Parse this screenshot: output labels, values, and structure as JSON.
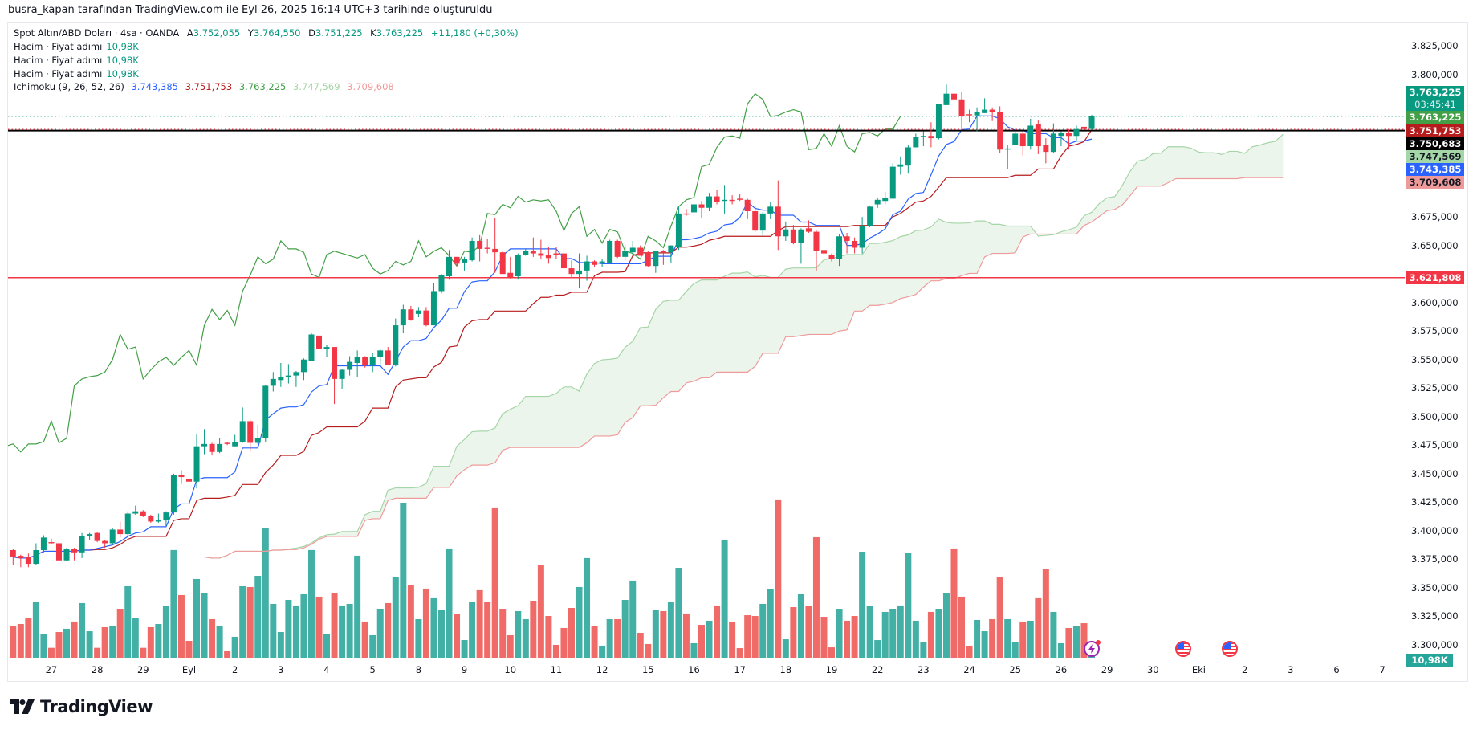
{
  "credit": "busra_kapan tarafından TradingView.com ile Eyl 26, 2025 16:14 UTC+3 tarihinde oluşturuldu",
  "legend": {
    "symbol": "Spot Altın/ABD Doları · 4sa · OANDA",
    "ohlc": [
      {
        "key": "A",
        "value": "3.752,055"
      },
      {
        "key": "Y",
        "value": "3.764,550"
      },
      {
        "key": "D",
        "value": "3.751,225"
      },
      {
        "key": "K",
        "value": "3.763,225"
      }
    ],
    "change": "+11,180 (+0,30%)",
    "volume_lines": [
      {
        "label": "Hacim · Fiyat adımı",
        "value": "10,98K"
      },
      {
        "label": "Hacim · Fiyat adımı",
        "value": "10,98K"
      },
      {
        "label": "Hacim · Fiyat adımı",
        "value": "10,98K"
      }
    ],
    "ichimoku": {
      "label": "Ichimoku (9, 26, 52, 26)",
      "values": [
        {
          "value": "3.743,385",
          "color": "#2962ff"
        },
        {
          "value": "3.751,753",
          "color": "#b71c1c"
        },
        {
          "value": "3.763,225",
          "color": "#43a047"
        },
        {
          "value": "3.747,569",
          "color": "#a5d6a7"
        },
        {
          "value": "3.709,608",
          "color": "#ef9a9a"
        }
      ]
    }
  },
  "price_axis": {
    "ticks": [
      {
        "value": 3.825,
        "label": "3.825,000"
      },
      {
        "value": 3.8,
        "label": "3.800,000"
      },
      {
        "value": 3.675,
        "label": "3.675,000"
      },
      {
        "value": 3.65,
        "label": "3.650,000"
      },
      {
        "value": 3.6,
        "label": "3.600,000"
      },
      {
        "value": 3.575,
        "label": "3.575,000"
      },
      {
        "value": 3.55,
        "label": "3.550,000"
      },
      {
        "value": 3.525,
        "label": "3.525,000"
      },
      {
        "value": 3.5,
        "label": "3.500,000"
      },
      {
        "value": 3.475,
        "label": "3.475,000"
      },
      {
        "value": 3.45,
        "label": "3.450,000"
      },
      {
        "value": 3.425,
        "label": "3.425,000"
      },
      {
        "value": 3.4,
        "label": "3.400,000"
      },
      {
        "value": 3.375,
        "label": "3.375,000"
      },
      {
        "value": 3.35,
        "label": "3.350,000"
      },
      {
        "value": 3.325,
        "label": "3.325,000"
      },
      {
        "value": 3.3,
        "label": "3.300,000"
      }
    ],
    "tags": [
      {
        "label": "3.763,225",
        "sub": "03:45:41",
        "bg": "#089981",
        "fg": "#ffffff"
      },
      {
        "label": "3.763,225",
        "bg": "#43a047",
        "fg": "#ffffff"
      },
      {
        "label": "3.751,753",
        "bg": "#b71c1c",
        "fg": "#ffffff"
      },
      {
        "label": "3.750,683",
        "bg": "#000000",
        "fg": "#ffffff"
      },
      {
        "label": "3.747,569",
        "bg": "#a5d6a7",
        "fg": "#131722"
      },
      {
        "label": "3.743,385",
        "bg": "#2962ff",
        "fg": "#ffffff"
      },
      {
        "label": "3.709,608",
        "bg": "#ef9a9a",
        "fg": "#131722"
      }
    ],
    "level_tag": {
      "label": "3.621,808",
      "bg": "#f23645",
      "fg": "#ffffff"
    },
    "volume_tag": {
      "label": "10,98K",
      "bg": "#26a69a",
      "fg": "#ffffff"
    }
  },
  "time_axis": [
    {
      "label": "27",
      "bar": 5
    },
    {
      "label": "28",
      "bar": 11
    },
    {
      "label": "29",
      "bar": 17
    },
    {
      "label": "Eyl",
      "bar": 23
    },
    {
      "label": "2",
      "bar": 29
    },
    {
      "label": "3",
      "bar": 35
    },
    {
      "label": "4",
      "bar": 41
    },
    {
      "label": "5",
      "bar": 47
    },
    {
      "label": "8",
      "bar": 53
    },
    {
      "label": "9",
      "bar": 59
    },
    {
      "label": "10",
      "bar": 65
    },
    {
      "label": "11",
      "bar": 71
    },
    {
      "label": "12",
      "bar": 77
    },
    {
      "label": "15",
      "bar": 83
    },
    {
      "label": "16",
      "bar": 89
    },
    {
      "label": "17",
      "bar": 95
    },
    {
      "label": "18",
      "bar": 101
    },
    {
      "label": "19",
      "bar": 107
    },
    {
      "label": "22",
      "bar": 113
    },
    {
      "label": "23",
      "bar": 119
    },
    {
      "label": "24",
      "bar": 125
    },
    {
      "label": "25",
      "bar": 131
    },
    {
      "label": "26",
      "bar": 137
    },
    {
      "label": "29",
      "bar": 143
    },
    {
      "label": "30",
      "bar": 149
    },
    {
      "label": "Eki",
      "bar": 155
    },
    {
      "label": "2",
      "bar": 161
    },
    {
      "label": "3",
      "bar": 167
    },
    {
      "label": "6",
      "bar": 173
    },
    {
      "label": "7",
      "bar": 179
    }
  ],
  "events": [
    {
      "icon": "lightning-icon",
      "bar": 141
    },
    {
      "icon": "us-flag-icon",
      "bar": 153
    },
    {
      "icon": "us-flag-icon",
      "bar": 159
    }
  ],
  "logo": "TradingView",
  "chart_data": {
    "type": "candlestick",
    "symbol": "Spot Altın/ABD Doları",
    "interval": "4sa",
    "ylim": [
      3.29,
      3.835
    ],
    "grid": false,
    "colors": {
      "up": "#089981",
      "down": "#f23645",
      "vol_up": "#42b0a5",
      "vol_down": "#f06b67"
    },
    "ichimoku": {
      "conversion": 9,
      "base": 26,
      "span_b": 52,
      "displacement": 26,
      "colors": {
        "conversion": "#2962ff",
        "base": "#b71c1c",
        "lagging": "#43a047",
        "span_a": "#a5d6a7",
        "span_b": "#ef9a9a"
      }
    },
    "horizontal_lines": [
      {
        "value": 3.750683,
        "color": "#000000",
        "style": "solid"
      },
      {
        "value": 3.621808,
        "color": "#f23645",
        "style": "solid"
      },
      {
        "value": 3.763225,
        "color": "#089981",
        "style": "dotted"
      },
      {
        "value": 3.751753,
        "color": "#f23645",
        "style": "dotted"
      }
    ],
    "ohlc": [
      [
        3.383,
        3.384,
        3.37,
        3.377
      ],
      [
        3.378,
        3.379,
        3.368,
        3.376
      ],
      [
        3.377,
        3.38,
        3.368,
        3.371
      ],
      [
        3.371,
        3.389,
        3.37,
        3.383
      ],
      [
        3.383,
        3.396,
        3.381,
        3.394
      ],
      [
        3.39,
        3.393,
        3.388,
        3.389
      ],
      [
        3.389,
        3.39,
        3.373,
        3.374
      ],
      [
        3.374,
        3.385,
        3.373,
        3.384
      ],
      [
        3.384,
        3.385,
        3.374,
        3.381
      ],
      [
        3.381,
        3.398,
        3.376,
        3.395
      ],
      [
        3.395,
        3.398,
        3.392,
        3.397
      ],
      [
        3.398,
        3.399,
        3.39,
        3.391
      ],
      [
        3.391,
        3.392,
        3.385,
        3.389
      ],
      [
        3.389,
        3.402,
        3.388,
        3.401
      ],
      [
        3.401,
        3.408,
        3.394,
        3.397
      ],
      [
        3.397,
        3.417,
        3.394,
        3.415
      ],
      [
        3.415,
        3.422,
        3.414,
        3.417
      ],
      [
        3.417,
        3.418,
        3.412,
        3.413
      ],
      [
        3.413,
        3.414,
        3.407,
        3.408
      ],
      [
        3.408,
        3.415,
        3.407,
        3.409
      ],
      [
        3.409,
        3.417,
        3.404,
        3.416
      ],
      [
        3.416,
        3.45,
        3.414,
        3.449
      ],
      [
        3.449,
        3.453,
        3.441,
        3.447
      ],
      [
        3.445,
        3.452,
        3.442,
        3.443
      ],
      [
        3.443,
        3.485,
        3.437,
        3.474
      ],
      [
        3.474,
        3.489,
        3.467,
        3.476
      ],
      [
        3.476,
        3.477,
        3.466,
        3.469
      ],
      [
        3.469,
        3.481,
        3.468,
        3.476
      ],
      [
        3.477,
        3.478,
        3.475,
        3.476
      ],
      [
        3.474,
        3.484,
        3.474,
        3.478
      ],
      [
        3.478,
        3.508,
        3.477,
        3.496
      ],
      [
        3.496,
        3.497,
        3.47,
        3.477
      ],
      [
        3.477,
        3.493,
        3.476,
        3.481
      ],
      [
        3.481,
        3.528,
        3.478,
        3.527
      ],
      [
        3.527,
        3.539,
        3.522,
        3.533
      ],
      [
        3.532,
        3.547,
        3.526,
        3.535
      ],
      [
        3.535,
        3.546,
        3.529,
        3.536
      ],
      [
        3.536,
        3.54,
        3.526,
        3.539
      ],
      [
        3.539,
        3.551,
        3.532,
        3.55
      ],
      [
        3.549,
        3.573,
        3.549,
        3.572
      ],
      [
        3.571,
        3.578,
        3.559,
        3.559
      ],
      [
        3.559,
        3.563,
        3.552,
        3.561
      ],
      [
        3.561,
        3.561,
        3.511,
        3.533
      ],
      [
        3.533,
        3.542,
        3.524,
        3.541
      ],
      [
        3.541,
        3.553,
        3.536,
        3.548
      ],
      [
        3.547,
        3.558,
        3.535,
        3.552
      ],
      [
        3.552,
        3.553,
        3.543,
        3.545
      ],
      [
        3.545,
        3.556,
        3.539,
        3.552
      ],
      [
        3.552,
        3.559,
        3.546,
        3.558
      ],
      [
        3.558,
        3.561,
        3.545,
        3.545
      ],
      [
        3.545,
        3.586,
        3.544,
        3.58
      ],
      [
        3.58,
        3.598,
        3.573,
        3.594
      ],
      [
        3.594,
        3.597,
        3.584,
        3.585
      ],
      [
        3.59,
        3.596,
        3.587,
        3.593
      ],
      [
        3.593,
        3.596,
        3.579,
        3.58
      ],
      [
        3.58,
        3.617,
        3.58,
        3.61
      ],
      [
        3.61,
        3.625,
        3.608,
        3.624
      ],
      [
        3.623,
        3.646,
        3.62,
        3.64
      ],
      [
        3.64,
        3.64,
        3.632,
        3.634
      ],
      [
        3.635,
        3.64,
        3.628,
        3.638
      ],
      [
        3.637,
        3.657,
        3.636,
        3.654
      ],
      [
        3.654,
        3.659,
        3.636,
        3.647
      ],
      [
        3.648,
        3.656,
        3.643,
        3.647
      ],
      [
        3.647,
        3.674,
        3.626,
        3.644
      ],
      [
        3.644,
        3.645,
        3.625,
        3.625
      ],
      [
        3.626,
        3.64,
        3.621,
        3.622
      ],
      [
        3.623,
        3.643,
        3.62,
        3.642
      ],
      [
        3.642,
        3.647,
        3.641,
        3.645
      ],
      [
        3.645,
        3.657,
        3.64,
        3.643
      ],
      [
        3.643,
        3.655,
        3.638,
        3.641
      ],
      [
        3.642,
        3.649,
        3.634,
        3.639
      ],
      [
        3.643,
        3.649,
        3.638,
        3.642
      ],
      [
        3.643,
        3.648,
        3.63,
        3.63
      ],
      [
        3.63,
        3.637,
        3.622,
        3.625
      ],
      [
        3.625,
        3.643,
        3.613,
        3.628
      ],
      [
        3.628,
        3.641,
        3.619,
        3.636
      ],
      [
        3.636,
        3.637,
        3.631,
        3.633
      ],
      [
        3.635,
        3.638,
        3.631,
        3.636
      ],
      [
        3.635,
        3.655,
        3.635,
        3.654
      ],
      [
        3.654,
        3.655,
        3.639,
        3.64
      ],
      [
        3.64,
        3.65,
        3.637,
        3.645
      ],
      [
        3.644,
        3.654,
        3.642,
        3.648
      ],
      [
        3.648,
        3.65,
        3.641,
        3.641
      ],
      [
        3.644,
        3.645,
        3.631,
        3.632
      ],
      [
        3.632,
        3.645,
        3.626,
        3.645
      ],
      [
        3.645,
        3.646,
        3.633,
        3.644
      ],
      [
        3.644,
        3.65,
        3.635,
        3.65
      ],
      [
        3.649,
        3.684,
        3.646,
        3.678
      ],
      [
        3.678,
        3.682,
        3.676,
        3.677
      ],
      [
        3.679,
        3.686,
        3.675,
        3.686
      ],
      [
        3.686,
        3.689,
        3.674,
        3.683
      ],
      [
        3.683,
        3.696,
        3.68,
        3.693
      ],
      [
        3.693,
        3.699,
        3.686,
        3.688
      ],
      [
        3.689,
        3.703,
        3.678,
        3.69
      ],
      [
        3.69,
        3.694,
        3.686,
        3.689
      ],
      [
        3.691,
        3.695,
        3.689,
        3.69
      ],
      [
        3.69,
        3.691,
        3.673,
        3.68
      ],
      [
        3.68,
        3.684,
        3.662,
        3.663
      ],
      [
        3.663,
        3.679,
        3.659,
        3.678
      ],
      [
        3.678,
        3.688,
        3.673,
        3.684
      ],
      [
        3.684,
        3.707,
        3.646,
        3.658
      ],
      [
        3.658,
        3.671,
        3.654,
        3.664
      ],
      [
        3.664,
        3.668,
        3.651,
        3.652
      ],
      [
        3.652,
        3.665,
        3.634,
        3.664
      ],
      [
        3.665,
        3.672,
        3.661,
        3.662
      ],
      [
        3.662,
        3.663,
        3.628,
        3.645
      ],
      [
        3.646,
        3.646,
        3.64,
        3.643
      ],
      [
        3.642,
        3.643,
        3.636,
        3.638
      ],
      [
        3.638,
        3.66,
        3.632,
        3.658
      ],
      [
        3.658,
        3.661,
        3.643,
        3.654
      ],
      [
        3.654,
        3.657,
        3.643,
        3.648
      ],
      [
        3.648,
        3.675,
        3.643,
        3.667
      ],
      [
        3.667,
        3.685,
        3.666,
        3.684
      ],
      [
        3.686,
        3.692,
        3.683,
        3.69
      ],
      [
        3.689,
        3.697,
        3.686,
        3.692
      ],
      [
        3.691,
        3.722,
        3.691,
        3.719
      ],
      [
        3.719,
        3.728,
        3.712,
        3.721
      ],
      [
        3.72,
        3.738,
        3.713,
        3.736
      ],
      [
        3.736,
        3.748,
        3.736,
        3.745
      ],
      [
        3.745,
        3.75,
        3.737,
        3.746
      ],
      [
        3.746,
        3.758,
        3.736,
        3.744
      ],
      [
        3.744,
        3.774,
        3.743,
        3.774
      ],
      [
        3.773,
        3.791,
        3.773,
        3.783
      ],
      [
        3.783,
        3.784,
        3.764,
        3.778
      ],
      [
        3.778,
        3.785,
        3.751,
        3.763
      ],
      [
        3.765,
        3.769,
        3.758,
        3.764
      ],
      [
        3.764,
        3.771,
        3.75,
        3.767
      ],
      [
        3.766,
        3.779,
        3.766,
        3.769
      ],
      [
        3.769,
        3.771,
        3.759,
        3.767
      ],
      [
        3.767,
        3.772,
        3.731,
        3.734
      ],
      [
        3.734,
        3.738,
        3.717,
        3.735
      ],
      [
        3.738,
        3.75,
        3.738,
        3.748
      ],
      [
        3.748,
        3.75,
        3.729,
        3.737
      ],
      [
        3.737,
        3.761,
        3.734,
        3.755
      ],
      [
        3.756,
        3.76,
        3.73,
        3.737
      ],
      [
        3.738,
        3.744,
        3.722,
        3.732
      ],
      [
        3.732,
        3.757,
        3.731,
        3.748
      ],
      [
        3.746,
        3.75,
        3.737,
        3.749
      ],
      [
        3.749,
        3.752,
        3.734,
        3.746
      ],
      [
        3.746,
        3.755,
        3.741,
        3.752
      ],
      [
        3.754,
        3.757,
        3.741,
        3.752
      ],
      [
        3.752055,
        3.76455,
        3.751225,
        3.763225
      ]
    ],
    "volume_k": [
      33.2,
      34.8,
      40.5,
      57.5,
      25.1,
      10.8,
      26.7,
      30.0,
      37.3,
      55.9,
      27.5,
      10.8,
      31.6,
      32.4,
      50.2,
      72.9,
      41.3,
      10.8,
      31.6,
      34.8,
      52.7,
      109.4,
      64.0,
      17.8,
      80.2,
      65.6,
      39.7,
      33.2,
      7.3,
      21.9,
      72.9,
      72.1,
      83.4,
      132.0,
      55.1,
      26.7,
      59.1,
      53.5,
      64.8,
      109.4,
      62.4,
      25.1,
      65.6,
      53.5,
      55.1,
      103.7,
      37.3,
      23.5,
      50.2,
      55.9,
      82.6,
      157.1,
      73.7,
      39.7,
      70.5,
      60.8,
      48.6,
      111.0,
      44.6,
      18.6,
      57.5,
      68.9,
      56.7,
      152.3,
      50.2,
      23.5,
      47.8,
      39.7,
      58.3,
      94.0,
      42.9,
      13.8,
      30.8,
      51.0,
      72.1,
      101.3,
      32.4,
      13.0,
      39.7,
      39.7,
      59.1,
      78.6,
      25.9,
      14.6,
      48.6,
      47.8,
      56.7,
      91.5,
      45.4,
      15.4,
      34.0,
      38.1,
      53.5,
      119.1,
      36.5,
      10.5,
      43.7,
      42.9,
      55.1,
      69.7,
      160.4,
      19.4,
      51.8,
      64.8,
      52.7,
      122.3,
      42.1,
      11.3,
      50.2,
      38.1,
      42.9,
      107.7,
      52.7,
      18.6,
      47.0,
      50.2,
      53.5,
      106.1,
      38.1,
      16.2,
      47.0,
      50.2,
      66.4,
      111.0,
      62.4,
      13.0,
      38.9,
      27.5,
      39.7,
      82.6,
      39.7,
      16.2,
      37.3,
      38.1,
      60.8,
      90.7,
      47.0,
      15.4,
      30.8,
      32.4,
      35.6,
      10.98
    ]
  }
}
